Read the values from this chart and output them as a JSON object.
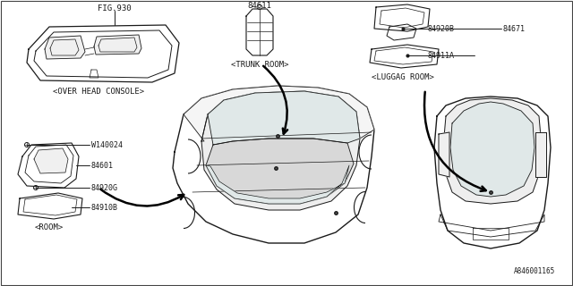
{
  "bg_color": "#ffffff",
  "lc": "#1a1a1a",
  "tc": "#1a1a1a",
  "fig_ref": "FIG.930",
  "part_84611": "84611",
  "labels": {
    "overhead": "<OVER HEAD CONSOLE>",
    "trunk": "<TRUNK ROOM>",
    "luggag": "<LUGGAG ROOM>",
    "room": "<ROOM>",
    "bottom_ref": "A846001165"
  },
  "parts": {
    "w140024": "W140024",
    "p84601": "84601",
    "p84920g": "84920G",
    "p84910b": "84910B",
    "p84920b": "84920B",
    "p84671": "84671",
    "p84911a": "84911A"
  }
}
